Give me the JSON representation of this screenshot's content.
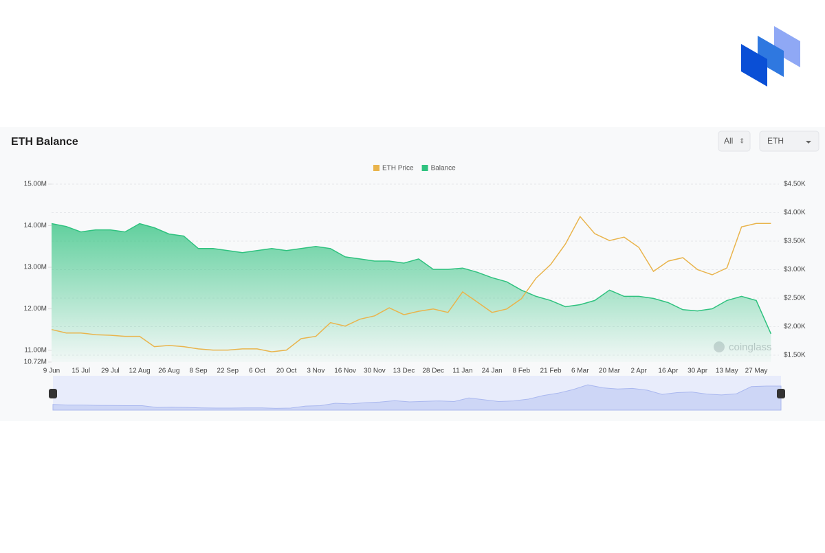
{
  "chart_data": {
    "type": "line",
    "title": "ETH Balance",
    "range_selector": "All",
    "unit_selector": "ETH",
    "watermark": "coinglass",
    "categories": [
      "9 Jun",
      null,
      "15 Jul",
      null,
      "29 Jul",
      null,
      "12 Aug",
      null,
      "26 Aug",
      null,
      "8 Sep",
      null,
      "22 Sep",
      null,
      "6 Oct",
      null,
      "20 Oct",
      null,
      "3 Nov",
      null,
      "16 Nov",
      null,
      "30 Nov",
      null,
      "13 Dec",
      null,
      "28 Dec",
      null,
      "11 Jan",
      null,
      "24 Jan",
      null,
      "8 Feb",
      null,
      "21 Feb",
      null,
      "6 Mar",
      null,
      "20 Mar",
      null,
      "2 Apr",
      null,
      "16 Apr",
      null,
      "30 Apr",
      null,
      "13 May",
      null,
      "27 May",
      null
    ],
    "series": [
      {
        "name": "ETH Price",
        "color": "#e9b44c",
        "axis": "y2",
        "values": [
          1950,
          1890,
          1890,
          1860,
          1850,
          1830,
          1830,
          1650,
          1670,
          1650,
          1610,
          1590,
          1590,
          1610,
          1610,
          1560,
          1590,
          1790,
          1830,
          2070,
          2010,
          2130,
          2190,
          2330,
          2210,
          2270,
          2310,
          2250,
          2610,
          2430,
          2250,
          2310,
          2490,
          2850,
          3090,
          3450,
          3930,
          3630,
          3510,
          3570,
          3390,
          2970,
          3150,
          3210,
          3000,
          2910,
          3030,
          3750,
          3810,
          3810
        ]
      },
      {
        "name": "Balance",
        "color": "#2fc27f",
        "values": [
          14.05,
          13.98,
          13.85,
          13.9,
          13.9,
          13.85,
          14.05,
          13.95,
          13.8,
          13.75,
          13.45,
          13.45,
          13.4,
          13.35,
          13.4,
          13.45,
          13.4,
          13.45,
          13.5,
          13.45,
          13.25,
          13.2,
          13.15,
          13.15,
          13.1,
          13.2,
          12.95,
          12.95,
          12.98,
          12.88,
          12.75,
          12.65,
          12.45,
          12.3,
          12.2,
          12.05,
          12.1,
          12.2,
          12.45,
          12.3,
          12.3,
          12.25,
          12.15,
          11.98,
          11.95,
          12.0,
          12.2,
          12.3,
          12.2,
          11.4
        ]
      }
    ],
    "ylim": [
      10.72,
      15
    ],
    "yticks": [
      {
        "value": 10.72,
        "label": "10.72M"
      },
      {
        "value": 11,
        "label": "11.00M"
      },
      {
        "value": 12,
        "label": "12.00M"
      },
      {
        "value": 13,
        "label": "13.00M"
      },
      {
        "value": 14,
        "label": "14.00M"
      },
      {
        "value": 15,
        "label": "15.00M"
      }
    ],
    "y2lim": [
      1380,
      4500
    ],
    "y2ticks": [
      {
        "value": 1500,
        "label": "$1.50K"
      },
      {
        "value": 2000,
        "label": "$2.00K"
      },
      {
        "value": 2500,
        "label": "$2.50K"
      },
      {
        "value": 3000,
        "label": "$3.00K"
      },
      {
        "value": 3500,
        "label": "$3.50K"
      },
      {
        "value": 4000,
        "label": "$4.00K"
      },
      {
        "value": 4500,
        "label": "$4.50K"
      }
    ],
    "grid": true,
    "legend": "top"
  }
}
